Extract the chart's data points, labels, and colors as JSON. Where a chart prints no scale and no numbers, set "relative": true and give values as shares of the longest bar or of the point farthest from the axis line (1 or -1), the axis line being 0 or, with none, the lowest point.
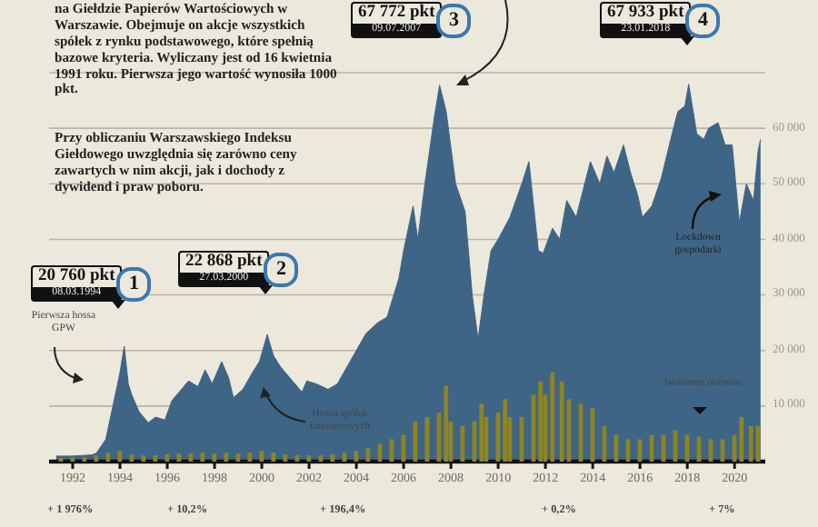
{
  "chart_data": [
    {
      "type": "area",
      "color": "#3e6585",
      "x": [
        1991.3,
        1992.0,
        1992.8,
        1993.0,
        1993.4,
        1993.7,
        1994.0,
        1994.18,
        1994.35,
        1994.5,
        1994.8,
        1995.2,
        1995.5,
        1995.9,
        1996.2,
        1996.6,
        1996.9,
        1997.3,
        1997.6,
        1997.9,
        1998.3,
        1998.6,
        1998.8,
        1999.2,
        1999.6,
        1999.9,
        2000.23,
        2000.5,
        2000.8,
        2001.2,
        2001.7,
        2001.9,
        2002.3,
        2002.8,
        2003.2,
        2003.6,
        2004.0,
        2004.4,
        2004.9,
        2005.3,
        2005.8,
        2006.0,
        2006.4,
        2006.6,
        2006.9,
        2007.3,
        2007.52,
        2007.8,
        2008.2,
        2008.6,
        2008.9,
        2009.15,
        2009.4,
        2009.7,
        2010.0,
        2010.5,
        2011.0,
        2011.3,
        2011.7,
        2011.9,
        2012.3,
        2012.6,
        2012.9,
        2013.3,
        2013.6,
        2013.9,
        2014.3,
        2014.6,
        2014.9,
        2015.3,
        2015.6,
        2015.9,
        2016.1,
        2016.5,
        2016.9,
        2017.3,
        2017.6,
        2017.9,
        2018.06,
        2018.4,
        2018.7,
        2018.9,
        2019.3,
        2019.6,
        2019.9,
        2020.2,
        2020.5,
        2020.8,
        2021.0,
        2021.1
      ],
      "values": [
        1000,
        1000,
        1200,
        1500,
        4000,
        10000,
        16000,
        20760,
        14000,
        12000,
        9000,
        7000,
        8000,
        7500,
        11000,
        13000,
        14500,
        13500,
        16500,
        14000,
        18000,
        15000,
        11500,
        13000,
        16000,
        18000,
        22868,
        19000,
        17000,
        15000,
        12500,
        14500,
        14000,
        13000,
        14000,
        17000,
        20000,
        23000,
        25000,
        26000,
        33000,
        38000,
        46000,
        40000,
        50000,
        62000,
        67772,
        63000,
        50000,
        45000,
        30000,
        22000,
        30000,
        38000,
        40000,
        44000,
        50000,
        54000,
        38000,
        37500,
        42000,
        40000,
        47000,
        44000,
        49000,
        54000,
        50000,
        55000,
        52000,
        57000,
        52000,
        48000,
        44000,
        46000,
        51000,
        58000,
        63000,
        64000,
        67933,
        59000,
        58000,
        60000,
        61000,
        57000,
        57000,
        43000,
        50000,
        47000,
        56000,
        58000
      ],
      "xlim": [
        1991,
        2021.3
      ],
      "xticks": [
        1992,
        1994,
        1996,
        1998,
        2000,
        2002,
        2004,
        2006,
        2008,
        2010,
        2012,
        2014,
        2016,
        2018,
        2020
      ],
      "ylim": [
        0,
        70000
      ],
      "yticks": [
        {
          "value": 10000,
          "label": "10 000"
        },
        {
          "value": 20000,
          "label": "20 000"
        },
        {
          "value": 30000,
          "label": "30 000"
        },
        {
          "value": 40000,
          "label": "40 000"
        },
        {
          "value": 50000,
          "label": "50 000"
        },
        {
          "value": 60000,
          "label": "60 000"
        }
      ],
      "grid": "y",
      "annotations": [
        "na Giełdzie Papierów Wartościowych w Warszawie. Obejmuje on akcje wszystkich spółek z rynku podstawowego, które spełnią bazowe kryteria. Wyliczany jest od 16 kwietnia 1991 roku. Pierwsza jego wartość wynosiła 1000 pkt.",
        "Przy obliczaniu Warszawskiego Indeksu Giełdowego uwzględnia się zarówno ceny zawartych w nim akcji, jak i dochody z dywidend i praw poboru.",
        "Pierwsza hossa GPW",
        "Hossa spółek internetowych",
        "Lockdown gospodarki",
        "Wolumen obrotów",
        "+ 1 976%",
        "+ 10,2%",
        "+ 196,4%",
        "+ 0,2%",
        "+ 7%",
        "20 760 pkt",
        "08.03.1994",
        "1",
        "22 868 pkt",
        "27.03.2000",
        "2",
        "67 772 pkt",
        "09.07.2007",
        "3",
        "67 933 pkt",
        "23.01.2018",
        "4"
      ]
    },
    {
      "type": "bar",
      "relative": true,
      "color": "#8f8423",
      "tick_labels": false,
      "xlim": [
        1991,
        2021.3
      ],
      "x": [
        1991.5,
        1992,
        1992.5,
        1993,
        1993.5,
        1994,
        1994.5,
        1995,
        1995.5,
        1996,
        1996.5,
        1997,
        1997.5,
        1998,
        1998.5,
        1999,
        1999.5,
        2000,
        2000.5,
        2001,
        2001.5,
        2002,
        2002.5,
        2003,
        2003.5,
        2004,
        2004.5,
        2005,
        2005.5,
        2006,
        2006.5,
        2007,
        2007.5,
        2007.8,
        2008,
        2008.5,
        2009,
        2009.3,
        2009.5,
        2010,
        2010.3,
        2010.5,
        2011,
        2011.5,
        2011.8,
        2012,
        2012.3,
        2012.7,
        2013,
        2013.5,
        2014,
        2014.5,
        2015,
        2015.5,
        2016,
        2016.5,
        2017,
        2017.5,
        2018,
        2018.5,
        2019,
        2019.5,
        2020,
        2020.3,
        2020.7,
        2021
      ],
      "values": [
        0.04,
        0.05,
        0.05,
        0.07,
        0.1,
        0.12,
        0.08,
        0.07,
        0.07,
        0.08,
        0.09,
        0.09,
        0.1,
        0.09,
        0.1,
        0.09,
        0.1,
        0.12,
        0.1,
        0.08,
        0.07,
        0.07,
        0.07,
        0.08,
        0.1,
        0.12,
        0.15,
        0.2,
        0.25,
        0.3,
        0.45,
        0.5,
        0.55,
        0.85,
        0.45,
        0.4,
        0.45,
        0.65,
        0.5,
        0.55,
        0.7,
        0.5,
        0.5,
        0.75,
        0.9,
        0.75,
        1,
        0.9,
        0.7,
        0.65,
        0.6,
        0.4,
        0.3,
        0.25,
        0.25,
        0.3,
        0.3,
        0.35,
        0.3,
        0.28,
        0.25,
        0.25,
        0.3,
        0.5,
        0.4,
        0.4
      ]
    }
  ]
}
